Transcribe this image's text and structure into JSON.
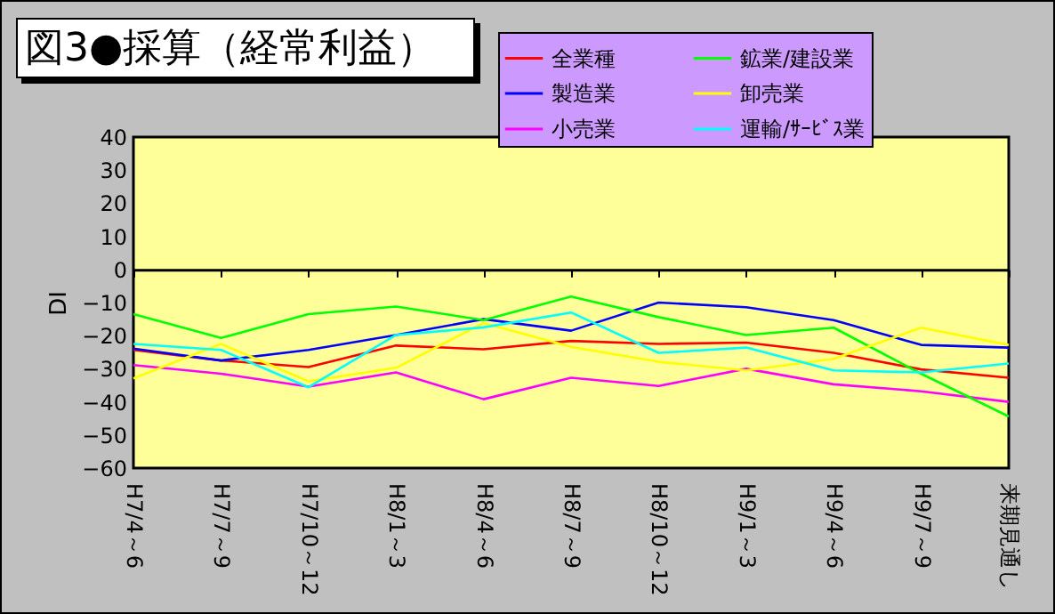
{
  "chart_data": {
    "type": "line",
    "title": "図3●採算（経常利益）",
    "ylabel": "DI",
    "categories": [
      "H7/4～6",
      "H7/7～9",
      "H7/10～12",
      "H8/1～3",
      "H8/4～6",
      "H8/7～9",
      "H8/10～12",
      "H9/1～3",
      "H9/4～6",
      "H9/7～9",
      "来期見通し"
    ],
    "series": [
      {
        "name": "全業種",
        "color": "#ff0000",
        "values": [
          -24.3,
          -27.5,
          -29.5,
          -23,
          -24.1,
          -21.6,
          -22.5,
          -22.1,
          -25.2,
          -30.2,
          -32.7
        ]
      },
      {
        "name": "製造業",
        "color": "#0000ff",
        "values": [
          -23.9,
          -27.5,
          -24.3,
          -19.8,
          -15,
          -18.5,
          -10,
          -11.4,
          -15.3,
          -22.8,
          -23.6
        ]
      },
      {
        "name": "小売業",
        "color": "#ff00ff",
        "values": [
          -28.9,
          -31.5,
          -35.4,
          -31.1,
          -39.2,
          -32.7,
          -35.2,
          -30,
          -34.7,
          -36.8,
          -40
        ]
      },
      {
        "name": "鉱業/建設業",
        "color": "#00ff00",
        "values": [
          -13.5,
          -20.7,
          -13.5,
          -11.2,
          -15.3,
          -8.2,
          -14.4,
          -19.8,
          -17.6,
          -31.5,
          -44.4
        ]
      },
      {
        "name": "卸売業",
        "color": "#ffff00",
        "values": [
          -32.9,
          -22.5,
          -33.8,
          -29.7,
          -16.2,
          -23.4,
          -27.9,
          -30.5,
          -27,
          -17.6,
          -22.8
        ]
      },
      {
        "name": "運輸/ｻｰﾋﾞｽ業",
        "color": "#00ffff",
        "values": [
          -22.5,
          -24.3,
          -35.6,
          -19.8,
          -17.5,
          -13,
          -25.2,
          -23.6,
          -30.5,
          -31.1,
          -28.4
        ]
      }
    ],
    "ylim": [
      -60,
      40
    ],
    "yticks": [
      -60,
      -50,
      -40,
      -30,
      -20,
      -10,
      0,
      10,
      20,
      30,
      40
    ],
    "ref_lines": [
      {
        "axis": "y",
        "value": 0,
        "color": "#000000"
      }
    ],
    "grid": false,
    "legend": "top right",
    "marker": "none",
    "line_style": "solid"
  }
}
